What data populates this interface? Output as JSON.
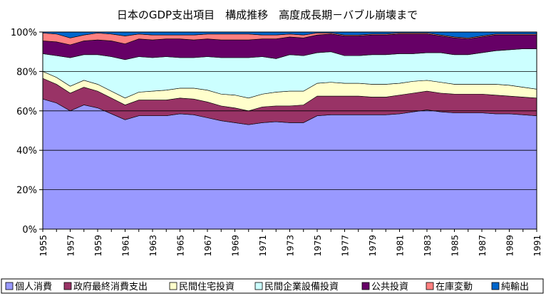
{
  "chart_data": {
    "type": "area",
    "stacked": true,
    "normalized": true,
    "title": "日本のGDP支出項目　構成推移　高度成長期－バブル崩壊まで",
    "x": [
      1955,
      1956,
      1957,
      1958,
      1959,
      1960,
      1961,
      1962,
      1963,
      1964,
      1965,
      1966,
      1967,
      1968,
      1969,
      1970,
      1971,
      1972,
      1973,
      1974,
      1975,
      1976,
      1977,
      1978,
      1979,
      1980,
      1981,
      1982,
      1983,
      1984,
      1985,
      1986,
      1987,
      1988,
      1989,
      1990,
      1991
    ],
    "x_tick_labels": [
      "1955",
      "1957",
      "1959",
      "1961",
      "1963",
      "1965",
      "1967",
      "1969",
      "1971",
      "1973",
      "1975",
      "1977",
      "1979",
      "1981",
      "1983",
      "1985",
      "1987",
      "1989",
      "1991"
    ],
    "y_tick_labels": [
      "0%",
      "20%",
      "40%",
      "60%",
      "80%",
      "100%"
    ],
    "ylim": [
      0,
      100
    ],
    "grid": true,
    "legend_position": "bottom",
    "series": [
      {
        "name": "個人消費",
        "color": "#9999ff",
        "values": [
          66,
          64,
          60,
          63,
          61.5,
          58.5,
          55.5,
          57.5,
          57.5,
          57.5,
          58.5,
          58,
          56.5,
          55,
          54,
          53,
          54,
          54.5,
          54,
          54,
          57.5,
          58,
          58,
          58,
          58,
          58,
          58.5,
          59.5,
          60.5,
          59.5,
          59,
          59,
          59,
          58.5,
          58.5,
          58,
          57.5
        ]
      },
      {
        "name": "政府最終消費支出",
        "color": "#993366",
        "values": [
          10.5,
          9.5,
          9,
          9,
          8.5,
          8,
          7.5,
          8,
          8,
          8,
          8,
          8,
          8,
          7.5,
          7.5,
          7,
          8,
          8,
          8.5,
          9,
          10,
          9.5,
          9.5,
          9.5,
          9,
          9,
          9.5,
          9.5,
          9.5,
          9.5,
          9.5,
          9.5,
          9.5,
          9.5,
          9,
          9,
          9
        ]
      },
      {
        "name": "民間住宅投資",
        "color": "#ffffcc",
        "values": [
          3.5,
          3.5,
          3.5,
          3.5,
          3.5,
          3.5,
          3.5,
          4,
          4.5,
          5,
          5,
          5.5,
          6,
          6,
          6.5,
          6.5,
          6.5,
          7,
          7.5,
          7,
          6.5,
          7,
          6.5,
          6.5,
          6.5,
          6.5,
          6,
          6,
          5.5,
          5.5,
          5,
          5,
          5,
          5.5,
          5.5,
          5,
          4.5
        ]
      },
      {
        "name": "民間企業設備投資",
        "color": "#ccffff",
        "values": [
          9,
          11,
          14.5,
          13,
          15,
          17.5,
          19.5,
          18,
          17,
          17,
          15.5,
          15.5,
          17,
          18.5,
          19,
          20.5,
          19,
          17,
          18.5,
          18,
          15.5,
          15.5,
          14,
          14,
          15,
          15,
          15,
          14,
          14,
          15,
          15,
          15,
          16,
          17,
          18,
          19.5,
          20.5
        ]
      },
      {
        "name": "公共投資",
        "color": "#660066",
        "values": [
          6.5,
          7,
          6.5,
          7,
          7.5,
          8,
          8,
          9,
          9,
          9,
          9.5,
          9,
          9,
          9,
          9,
          9,
          9,
          10,
          9,
          9,
          9,
          9,
          10,
          10,
          10,
          10,
          10,
          10,
          9.5,
          8.5,
          8.5,
          8,
          8,
          8,
          7.5,
          7,
          7
        ]
      },
      {
        "name": "在庫変動",
        "color": "#ff8080",
        "values": [
          4,
          4,
          3.5,
          3,
          3.5,
          3.5,
          4,
          2.5,
          2.5,
          2,
          2,
          2.5,
          2.5,
          3,
          3,
          3,
          2,
          2,
          1.5,
          1.5,
          1,
          0.5,
          0.5,
          0.5,
          0.5,
          0.5,
          0.5,
          0.5,
          0.5,
          0.5,
          0.5,
          0.5,
          0.5,
          0.5,
          0.5,
          0.5,
          0.5
        ]
      },
      {
        "name": "純輸出",
        "color": "#0066cc",
        "values": [
          0.5,
          1,
          3,
          1.5,
          0.5,
          1,
          2,
          1,
          1.5,
          1.5,
          1.5,
          1.5,
          1,
          1,
          1,
          1,
          1.5,
          1.5,
          1,
          1.5,
          0.5,
          0.5,
          1.5,
          1.5,
          1,
          1,
          0.5,
          0.5,
          0.5,
          1.5,
          2.5,
          3,
          2,
          1,
          1,
          1,
          1
        ]
      }
    ]
  }
}
